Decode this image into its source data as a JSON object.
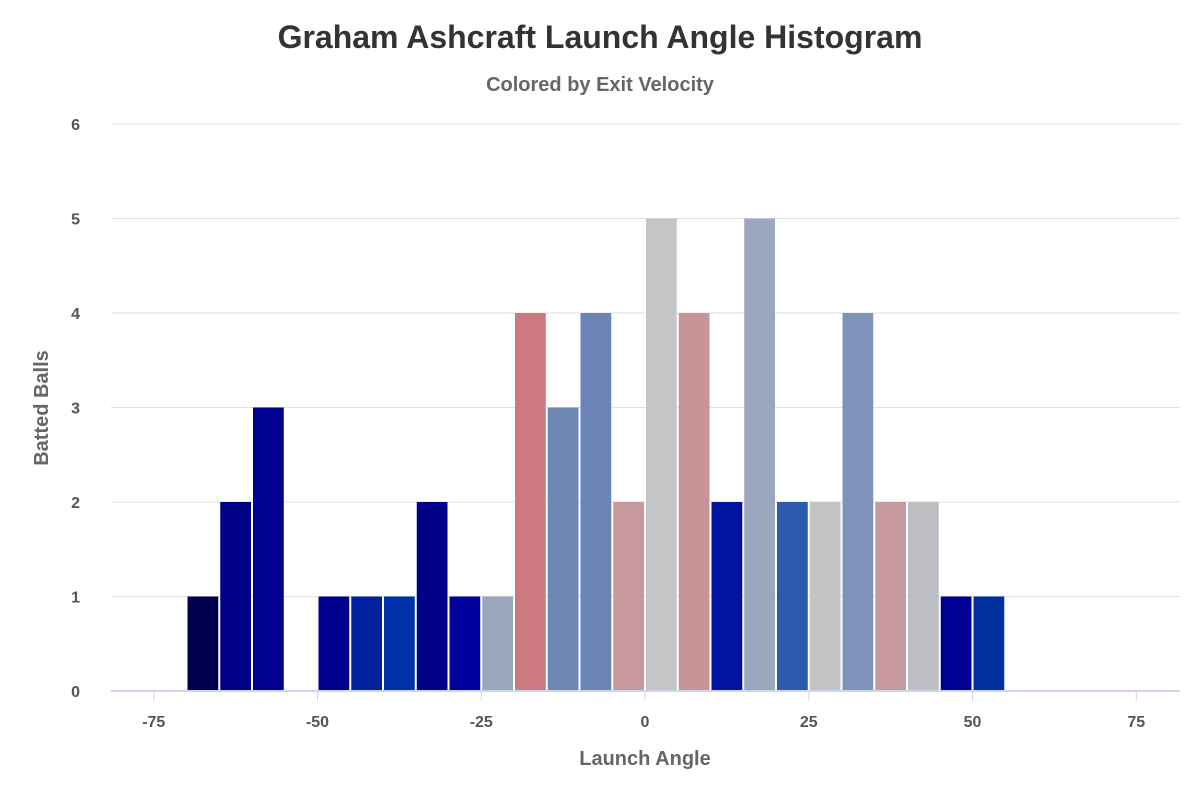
{
  "chart_data": {
    "type": "bar",
    "title": "Graham Ashcraft Launch Angle Histogram",
    "subtitle": "Colored by Exit Velocity",
    "xlabel": "Launch Angle",
    "ylabel": "Batted Balls",
    "xlim": [
      -80,
      80
    ],
    "ylim": [
      0,
      6
    ],
    "bin_width": 5,
    "x_ticks": [
      -75,
      -50,
      -25,
      0,
      25,
      50,
      75
    ],
    "y_ticks": [
      0,
      1,
      2,
      3,
      4,
      5,
      6
    ],
    "grid": true,
    "bars": [
      {
        "x": -67.5,
        "value": 1,
        "color": "#00004f"
      },
      {
        "x": -62.5,
        "value": 2,
        "color": "#000087"
      },
      {
        "x": -57.5,
        "value": 3,
        "color": "#000091"
      },
      {
        "x": -47.5,
        "value": 1,
        "color": "#00008f"
      },
      {
        "x": -42.5,
        "value": 1,
        "color": "#00229c"
      },
      {
        "x": -37.5,
        "value": 1,
        "color": "#0030a5"
      },
      {
        "x": -32.5,
        "value": 2,
        "color": "#000089"
      },
      {
        "x": -27.5,
        "value": 1,
        "color": "#00009c"
      },
      {
        "x": -22.5,
        "value": 1,
        "color": "#9aa8bb"
      },
      {
        "x": -17.5,
        "value": 4,
        "color": "#cc7a80"
      },
      {
        "x": -12.5,
        "value": 3,
        "color": "#6f87b5"
      },
      {
        "x": -7.5,
        "value": 4,
        "color": "#6a84b5"
      },
      {
        "x": -2.5,
        "value": 2,
        "color": "#c7999c"
      },
      {
        "x": 2.5,
        "value": 5,
        "color": "#c4c5c6"
      },
      {
        "x": 7.5,
        "value": 4,
        "color": "#c79597"
      },
      {
        "x": 12.5,
        "value": 2,
        "color": "#0014a0"
      },
      {
        "x": 17.5,
        "value": 5,
        "color": "#9ba6bf"
      },
      {
        "x": 22.5,
        "value": 2,
        "color": "#2c5bad"
      },
      {
        "x": 27.5,
        "value": 2,
        "color": "#c2c3c5"
      },
      {
        "x": 32.5,
        "value": 4,
        "color": "#7f92bc"
      },
      {
        "x": 37.5,
        "value": 2,
        "color": "#c99a9d"
      },
      {
        "x": 42.5,
        "value": 2,
        "color": "#bdbec2"
      },
      {
        "x": 47.5,
        "value": 1,
        "color": "#000094"
      },
      {
        "x": 52.5,
        "value": 1,
        "color": "#0030a0"
      }
    ],
    "gridline_color": "#e0e0e0",
    "axis_color": "#ccd6eb"
  }
}
